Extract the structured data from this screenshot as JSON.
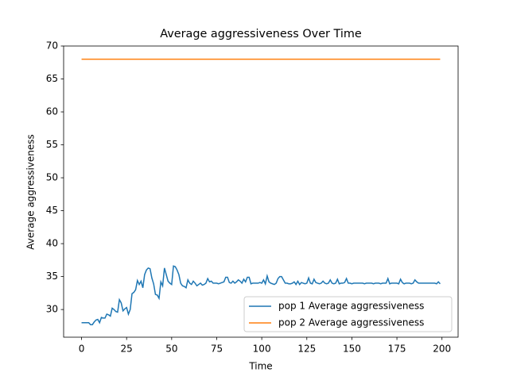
{
  "chart_data": {
    "type": "line",
    "title": "Average aggressiveness Over Time",
    "x_label": "Time",
    "y_label": "Average aggressiveness",
    "x": [
      0,
      1,
      2,
      3,
      4,
      5,
      6,
      7,
      8,
      9,
      10,
      11,
      12,
      13,
      14,
      15,
      16,
      17,
      18,
      19,
      20,
      21,
      22,
      23,
      24,
      25,
      26,
      27,
      28,
      29,
      30,
      31,
      32,
      33,
      34,
      35,
      36,
      37,
      38,
      39,
      40,
      41,
      42,
      43,
      44,
      45,
      46,
      47,
      48,
      49,
      50,
      51,
      52,
      53,
      54,
      55,
      56,
      57,
      58,
      59,
      60,
      61,
      62,
      63,
      64,
      65,
      66,
      67,
      68,
      69,
      70,
      71,
      72,
      73,
      74,
      75,
      76,
      77,
      78,
      79,
      80,
      81,
      82,
      83,
      84,
      85,
      86,
      87,
      88,
      89,
      90,
      91,
      92,
      93,
      94,
      95,
      96,
      97,
      98,
      99,
      100,
      101,
      102,
      103,
      104,
      105,
      106,
      107,
      108,
      109,
      110,
      111,
      112,
      113,
      114,
      115,
      116,
      117,
      118,
      119,
      120,
      121,
      122,
      123,
      124,
      125,
      126,
      127,
      128,
      129,
      130,
      131,
      132,
      133,
      134,
      135,
      136,
      137,
      138,
      139,
      140,
      141,
      142,
      143,
      144,
      145,
      146,
      147,
      148,
      149,
      150,
      151,
      152,
      153,
      154,
      155,
      156,
      157,
      158,
      159,
      160,
      161,
      162,
      163,
      164,
      165,
      166,
      167,
      168,
      169,
      170,
      171,
      172,
      173,
      174,
      175,
      176,
      177,
      178,
      179,
      180,
      181,
      182,
      183,
      184,
      185,
      186,
      187,
      188,
      189,
      190,
      191,
      192,
      193,
      194,
      195,
      196,
      197,
      198,
      199
    ],
    "series": [
      {
        "name": "pop 1 Average aggressiveness",
        "color": "#1f77b4",
        "values": [
          28,
          28,
          28,
          28,
          28,
          27.7,
          27.7,
          28.1,
          28.4,
          28.5,
          28.0,
          28.8,
          28.7,
          28.7,
          29.3,
          29.2,
          29.0,
          30.2,
          30.0,
          29.7,
          29.6,
          31.5,
          31.0,
          29.8,
          30.1,
          30.3,
          29.3,
          30.0,
          32.4,
          32.6,
          33.0,
          34.4,
          33.8,
          34.3,
          33.3,
          35.3,
          36.0,
          36.3,
          36.2,
          34.8,
          33.9,
          32.3,
          32.2,
          31.7,
          34.2,
          33.6,
          36.3,
          35.3,
          34.3,
          34.0,
          33.8,
          36.6,
          36.5,
          36.0,
          35.3,
          34.0,
          33.6,
          33.5,
          33.3,
          34.5,
          34.0,
          33.8,
          34.3,
          34.0,
          33.6,
          33.8,
          34.0,
          33.7,
          33.8,
          34.0,
          34.7,
          34.2,
          34.3,
          34.0,
          34.0,
          34.0,
          33.9,
          34.0,
          34.1,
          34.2,
          34.9,
          34.9,
          34.1,
          34.0,
          34.3,
          34.0,
          34.2,
          34.5,
          34.3,
          34.0,
          34.6,
          34.2,
          34.9,
          34.9,
          33.9,
          34.0,
          34.0,
          34.0,
          34.0,
          34.1,
          34.0,
          34.5,
          33.9,
          35.1,
          34.2,
          34.0,
          33.9,
          33.8,
          34.0,
          34.7,
          35.0,
          35.0,
          34.5,
          34.0,
          34.0,
          33.9,
          33.9,
          34.0,
          34.2,
          33.8,
          34.3,
          33.8,
          34.1,
          34.0,
          33.9,
          34.0,
          34.8,
          34.0,
          33.9,
          34.6,
          34.1,
          34.0,
          33.9,
          34.0,
          34.3,
          34.0,
          33.9,
          34.0,
          34.5,
          34.0,
          33.9,
          34.0,
          34.6,
          33.9,
          34.0,
          34.0,
          34.1,
          34.7,
          34.0,
          34.0,
          33.9,
          34.0,
          34.0,
          34.0,
          34.0,
          34.0,
          34.0,
          33.9,
          34.0,
          34.0,
          34.0,
          34.0,
          33.9,
          34.0,
          34.0,
          34.0,
          33.9,
          34.0,
          34.0,
          34.0,
          34.7,
          33.9,
          34.0,
          34.0,
          34.0,
          34.0,
          33.9,
          34.6,
          34.1,
          33.9,
          34.0,
          34.0,
          34.0,
          33.9,
          34.0,
          34.5,
          34.2,
          34.0,
          34.0,
          34.0,
          34.0,
          34.0,
          34.0,
          34.0,
          34.0,
          34.0,
          34.0,
          33.9,
          34.2,
          33.9
        ]
      },
      {
        "name": "pop 2 Average aggressiveness",
        "color": "#ff7f0e",
        "values": [
          68,
          68,
          68,
          68,
          68,
          68,
          68,
          68,
          68,
          68,
          68,
          68,
          68,
          68,
          68,
          68,
          68,
          68,
          68,
          68,
          68,
          68,
          68,
          68,
          68,
          68,
          68,
          68,
          68,
          68,
          68,
          68,
          68,
          68,
          68,
          68,
          68,
          68,
          68,
          68,
          68,
          68,
          68,
          68,
          68,
          68,
          68,
          68,
          68,
          68,
          68,
          68,
          68,
          68,
          68,
          68,
          68,
          68,
          68,
          68,
          68,
          68,
          68,
          68,
          68,
          68,
          68,
          68,
          68,
          68,
          68,
          68,
          68,
          68,
          68,
          68,
          68,
          68,
          68,
          68,
          68,
          68,
          68,
          68,
          68,
          68,
          68,
          68,
          68,
          68,
          68,
          68,
          68,
          68,
          68,
          68,
          68,
          68,
          68,
          68,
          68,
          68,
          68,
          68,
          68,
          68,
          68,
          68,
          68,
          68,
          68,
          68,
          68,
          68,
          68,
          68,
          68,
          68,
          68,
          68,
          68,
          68,
          68,
          68,
          68,
          68,
          68,
          68,
          68,
          68,
          68,
          68,
          68,
          68,
          68,
          68,
          68,
          68,
          68,
          68,
          68,
          68,
          68,
          68,
          68,
          68,
          68,
          68,
          68,
          68,
          68,
          68,
          68,
          68,
          68,
          68,
          68,
          68,
          68,
          68,
          68,
          68,
          68,
          68,
          68,
          68,
          68,
          68,
          68,
          68,
          68,
          68,
          68,
          68,
          68,
          68,
          68,
          68,
          68,
          68,
          68,
          68,
          68,
          68,
          68,
          68,
          68,
          68,
          68,
          68,
          68,
          68,
          68,
          68,
          68,
          68,
          68,
          68,
          68,
          68
        ]
      }
    ],
    "xlim": [
      -9.95,
      208.95
    ],
    "xticks": [
      0,
      25,
      50,
      75,
      100,
      125,
      150,
      175,
      200
    ],
    "ylim": [
      25.8,
      70.0
    ],
    "yticks": [
      30,
      35,
      40,
      45,
      50,
      55,
      60,
      65,
      70
    ],
    "legend": "lower right"
  }
}
